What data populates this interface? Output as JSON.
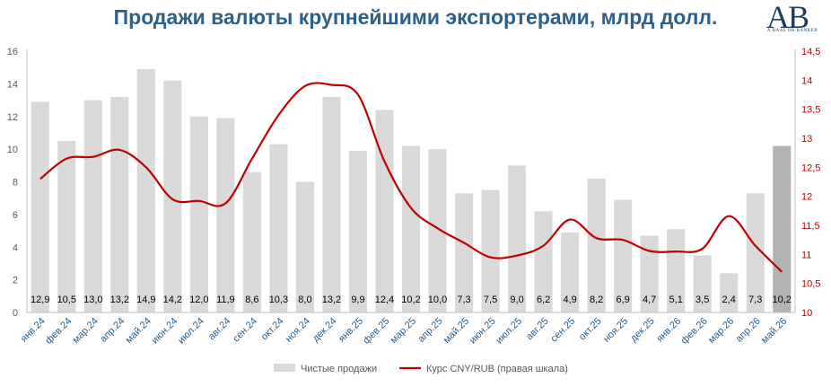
{
  "title": "Продажи валюты крупнейшими экспортерами, млрд долл.",
  "logo": {
    "letters": "AB",
    "tagline": "A HAAS OR BANKER"
  },
  "chart_data": {
    "type": "bar",
    "categories": [
      "янв.24",
      "фев.24",
      "мар.24",
      "апр.24",
      "май.24",
      "июн.24",
      "июл.24",
      "авг.24",
      "сен.24",
      "окт.24",
      "ноя.24",
      "дек.24",
      "янв.25",
      "фев.25",
      "мар.25",
      "апр.25",
      "май.25",
      "июн.25",
      "июл.25",
      "авг.25",
      "сен.25",
      "окт.25",
      "ноя.25",
      "дек.25",
      "янв.26",
      "фев.26",
      "мар.26",
      "апр.26",
      "май.26"
    ],
    "series": [
      {
        "name": "Чистые продажи",
        "type": "bar",
        "axis": "left",
        "values": [
          12.9,
          10.5,
          13.0,
          13.2,
          14.9,
          14.2,
          12.0,
          11.9,
          8.6,
          10.3,
          8.0,
          13.2,
          9.9,
          12.4,
          10.2,
          10.0,
          7.3,
          7.5,
          9.0,
          6.2,
          4.9,
          8.2,
          6.9,
          4.7,
          5.1,
          3.5,
          2.4,
          7.3,
          10.2
        ],
        "labels": [
          "12,9",
          "10,5",
          "13,0",
          "13,2",
          "14,9",
          "14,2",
          "12,0",
          "11,9",
          "8,6",
          "10,3",
          "8,0",
          "13,2",
          "9,9",
          "12,4",
          "10,2",
          "10,0",
          "7,3",
          "7,5",
          "9,0",
          "6,2",
          "4,9",
          "8,2",
          "6,9",
          "4,7",
          "5,1",
          "3,5",
          "2,4",
          "7,3",
          "10,2"
        ]
      },
      {
        "name": "Курс CNY/RUB (правая шкала)",
        "type": "line",
        "axis": "right",
        "values": [
          12.3,
          12.65,
          12.68,
          12.8,
          12.5,
          11.95,
          11.92,
          11.88,
          12.65,
          13.4,
          13.9,
          13.92,
          13.75,
          12.6,
          11.8,
          11.45,
          11.2,
          10.95,
          10.98,
          11.15,
          11.6,
          11.28,
          11.25,
          11.06,
          11.05,
          11.1,
          11.66,
          11.15,
          10.7
        ]
      }
    ],
    "left_axis": {
      "ylim": [
        0,
        16
      ],
      "ticks": [
        "0",
        "2",
        "4",
        "6",
        "8",
        "10",
        "12",
        "14",
        "16"
      ]
    },
    "right_axis": {
      "ylim": [
        10,
        14.5
      ],
      "ticks": [
        "10",
        "10,5",
        "11",
        "11,5",
        "12",
        "12,5",
        "13",
        "13,5",
        "14",
        "14,5"
      ]
    },
    "highlight_last_bar": true,
    "grid": false,
    "legend_position": "bottom",
    "colors": {
      "bar": "#d9d9d9",
      "bar_highlight": "#b3b3b3",
      "line": "#c00000",
      "left_axis": "#595959",
      "right_axis": "#c00000",
      "category_labels": "#2b5f8c",
      "title": "#2b5f8c"
    }
  }
}
